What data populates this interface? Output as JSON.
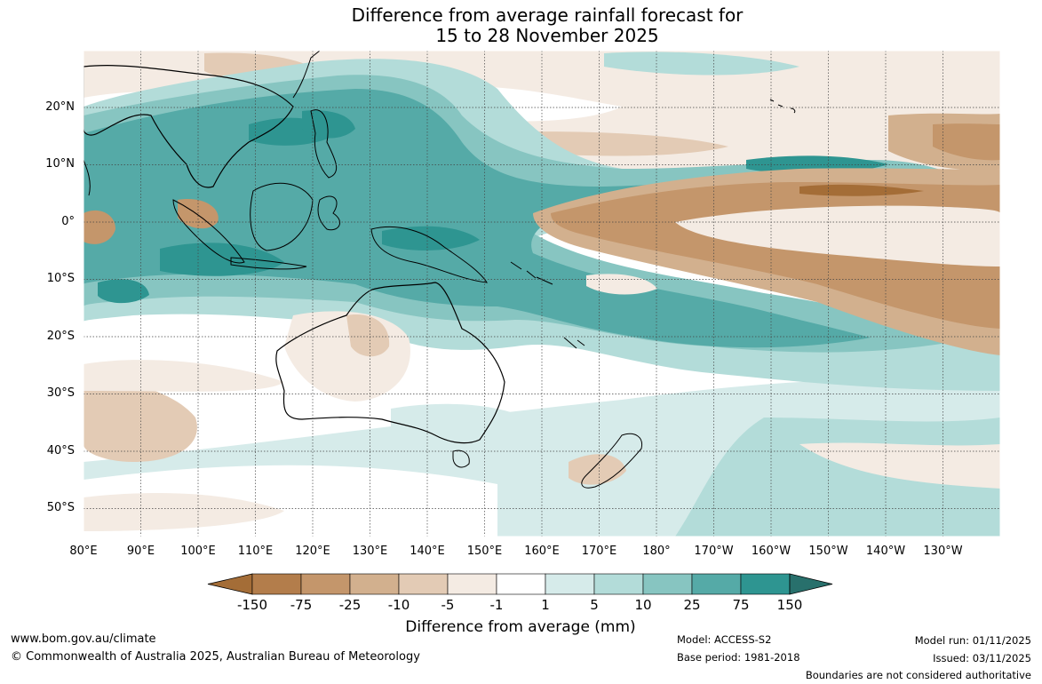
{
  "title": {
    "line1": "Difference from average rainfall forecast for",
    "line2": "15 to 28 November 2025"
  },
  "map": {
    "lon_range": [
      80,
      240
    ],
    "lat_range": [
      -55,
      30
    ],
    "lat_labels": [
      "20°N",
      "10°N",
      "0°",
      "10°S",
      "20°S",
      "30°S",
      "40°S",
      "50°S"
    ],
    "lon_labels": [
      "80°E",
      "90°E",
      "100°E",
      "110°E",
      "120°E",
      "130°E",
      "140°E",
      "150°E",
      "160°E",
      "170°E",
      "180°",
      "170°W",
      "160°W",
      "150°W",
      "140°W",
      "130°W"
    ]
  },
  "colorbar": {
    "title": "Difference from average (mm)",
    "tick_labels": [
      "-150",
      "-75",
      "-25",
      "-10",
      "-5",
      "-1",
      "1",
      "5",
      "10",
      "25",
      "75",
      "150"
    ],
    "colors": [
      "#a46d37",
      "#b37d4b",
      "#c4966b",
      "#d2b08e",
      "#e3cbb5",
      "#f4ebe3",
      "#ffffff",
      "#d6ebea",
      "#b3dcd9",
      "#87c5c1",
      "#55aaa7",
      "#2e9591",
      "#28706c"
    ]
  },
  "footer": {
    "website": "www.bom.gov.au/climate",
    "copyright": "© Commonwealth of Australia 2025, Australian Bureau of Meteorology",
    "model": "Model: ACCESS-S2",
    "base_period": "Base period: 1981-2018",
    "model_run": "Model run: 01/11/2025",
    "issued": "Issued: 03/11/2025",
    "disclaimer": "Boundaries are not considered authoritative"
  }
}
